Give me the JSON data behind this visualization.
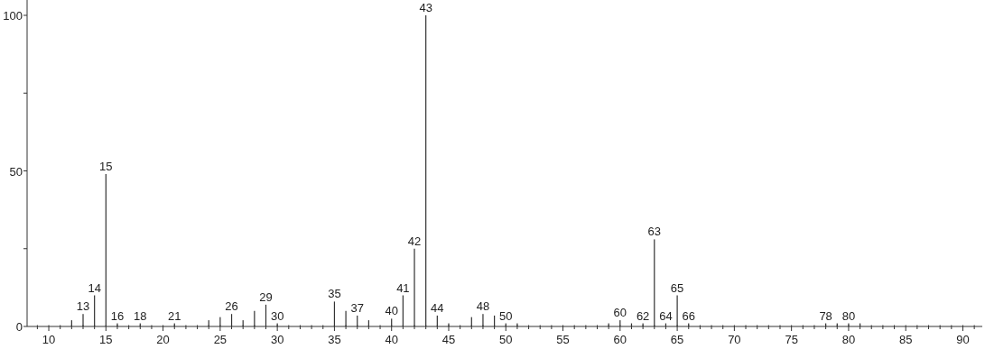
{
  "chart_data": {
    "type": "bar",
    "color": "#333333",
    "x": [
      12,
      13,
      14,
      15,
      16,
      18,
      21,
      24,
      25,
      26,
      27,
      28,
      29,
      30,
      35,
      36,
      37,
      38,
      40,
      41,
      42,
      43,
      44,
      45,
      47,
      48,
      49,
      50,
      51,
      59,
      60,
      61,
      62,
      63,
      64,
      65,
      66,
      78,
      79,
      80,
      81
    ],
    "values": [
      2,
      4,
      10,
      49,
      1,
      1,
      1,
      2,
      3,
      4,
      2,
      5,
      7,
      1,
      8,
      5,
      3.5,
      2,
      2.5,
      10,
      25,
      100,
      3.5,
      1,
      3,
      4,
      3.5,
      1,
      1,
      1,
      2,
      1,
      1,
      28,
      1,
      10,
      1,
      1,
      1,
      1,
      1
    ],
    "xlim": [
      8.1,
      91.7
    ],
    "ylim": [
      0,
      100
    ],
    "xticks": [
      {
        "value": 9,
        "label": null
      },
      10,
      {
        "value": 11,
        "label": null
      },
      {
        "value": 12,
        "label": null
      },
      {
        "value": 13,
        "label": null
      },
      {
        "value": 14,
        "label": null
      },
      15,
      {
        "value": 16,
        "label": null
      },
      {
        "value": 17,
        "label": null
      },
      {
        "value": 18,
        "label": null
      },
      {
        "value": 19,
        "label": null
      },
      20,
      {
        "value": 21,
        "label": null
      },
      {
        "value": 22,
        "label": null
      },
      {
        "value": 23,
        "label": null
      },
      {
        "value": 24,
        "label": null
      },
      25,
      {
        "value": 26,
        "label": null
      },
      {
        "value": 27,
        "label": null
      },
      {
        "value": 28,
        "label": null
      },
      {
        "value": 29,
        "label": null
      },
      30,
      {
        "value": 31,
        "label": null
      },
      {
        "value": 32,
        "label": null
      },
      {
        "value": 33,
        "label": null
      },
      {
        "value": 34,
        "label": null
      },
      35,
      {
        "value": 36,
        "label": null
      },
      {
        "value": 37,
        "label": null
      },
      {
        "value": 38,
        "label": null
      },
      {
        "value": 39,
        "label": null
      },
      40,
      {
        "value": 41,
        "label": null
      },
      {
        "value": 42,
        "label": null
      },
      {
        "value": 43,
        "label": null
      },
      {
        "value": 44,
        "label": null
      },
      45,
      {
        "value": 46,
        "label": null
      },
      {
        "value": 47,
        "label": null
      },
      {
        "value": 48,
        "label": null
      },
      {
        "value": 49,
        "label": null
      },
      50,
      {
        "value": 51,
        "label": null
      },
      {
        "value": 52,
        "label": null
      },
      {
        "value": 53,
        "label": null
      },
      {
        "value": 54,
        "label": null
      },
      55,
      {
        "value": 56,
        "label": null
      },
      {
        "value": 57,
        "label": null
      },
      {
        "value": 58,
        "label": null
      },
      {
        "value": 59,
        "label": null
      },
      60,
      {
        "value": 61,
        "label": null
      },
      {
        "value": 62,
        "label": null
      },
      {
        "value": 63,
        "label": null
      },
      {
        "value": 64,
        "label": null
      },
      65,
      {
        "value": 66,
        "label": null
      },
      {
        "value": 67,
        "label": null
      },
      {
        "value": 68,
        "label": null
      },
      {
        "value": 69,
        "label": null
      },
      70,
      {
        "value": 71,
        "label": null
      },
      {
        "value": 72,
        "label": null
      },
      {
        "value": 73,
        "label": null
      },
      {
        "value": 74,
        "label": null
      },
      75,
      {
        "value": 76,
        "label": null
      },
      {
        "value": 77,
        "label": null
      },
      {
        "value": 78,
        "label": null
      },
      {
        "value": 79,
        "label": null
      },
      80,
      {
        "value": 81,
        "label": null
      },
      {
        "value": 82,
        "label": null
      },
      {
        "value": 83,
        "label": null
      },
      {
        "value": 84,
        "label": null
      },
      85,
      {
        "value": 86,
        "label": null
      },
      {
        "value": 87,
        "label": null
      },
      {
        "value": 88,
        "label": null
      },
      {
        "value": 89,
        "label": null
      },
      90,
      {
        "value": 91,
        "label": null
      }
    ],
    "yticks": [
      0,
      {
        "value": 25,
        "label": null
      },
      50,
      {
        "value": 75,
        "label": null
      },
      100
    ],
    "annotations": [
      {
        "text": "13",
        "x": 13,
        "y": 4
      },
      {
        "text": "14",
        "x": 14,
        "y": 10
      },
      {
        "text": "15",
        "x": 15,
        "y": 49
      },
      {
        "text": "16",
        "x": 16,
        "y": 1
      },
      {
        "text": "18",
        "x": 18,
        "y": 1
      },
      {
        "text": "21",
        "x": 21,
        "y": 1
      },
      {
        "text": "26",
        "x": 26,
        "y": 4
      },
      {
        "text": "29",
        "x": 29,
        "y": 7
      },
      {
        "text": "30",
        "x": 30,
        "y": 1
      },
      {
        "text": "35",
        "x": 35,
        "y": 8
      },
      {
        "text": "37",
        "x": 37,
        "y": 3.5
      },
      {
        "text": "40",
        "x": 40,
        "y": 2.5
      },
      {
        "text": "41",
        "x": 41,
        "y": 10
      },
      {
        "text": "42",
        "x": 42,
        "y": 25
      },
      {
        "text": "43",
        "x": 43,
        "y": 100
      },
      {
        "text": "44",
        "x": 44,
        "y": 3.5
      },
      {
        "text": "48",
        "x": 48,
        "y": 4
      },
      {
        "text": "50",
        "x": 50,
        "y": 1
      },
      {
        "text": "60",
        "x": 60,
        "y": 2
      },
      {
        "text": "62",
        "x": 62,
        "y": 1
      },
      {
        "text": "63",
        "x": 63,
        "y": 28
      },
      {
        "text": "64",
        "x": 64,
        "y": 1
      },
      {
        "text": "65",
        "x": 65,
        "y": 10
      },
      {
        "text": "66",
        "x": 66,
        "y": 1
      },
      {
        "text": "78",
        "x": 78,
        "y": 1
      },
      {
        "text": "80",
        "x": 80,
        "y": 1
      }
    ]
  }
}
